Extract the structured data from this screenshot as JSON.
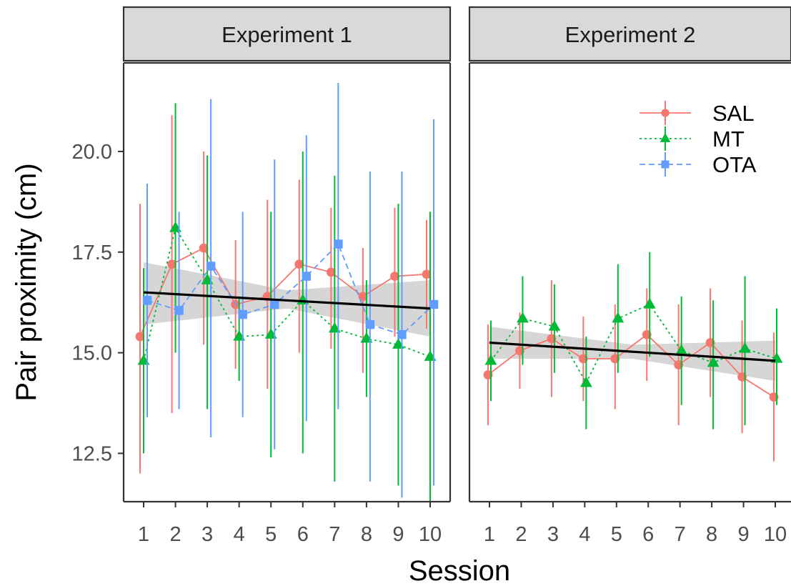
{
  "chart_data": {
    "type": "line",
    "xlabel": "Session",
    "ylabel": "Pair proximity (cm)",
    "ylim": [
      11.3,
      22.2
    ],
    "y_ticks": [
      12.5,
      15.0,
      17.5,
      20.0
    ],
    "y_tick_labels": [
      "12.5",
      "15.0",
      "17.5",
      "20.0"
    ],
    "x": [
      1,
      2,
      3,
      4,
      5,
      6,
      7,
      8,
      9,
      10
    ],
    "x_tick_labels": [
      "1",
      "2",
      "3",
      "4",
      "5",
      "6",
      "7",
      "8",
      "9",
      "10"
    ],
    "grid": false,
    "legend_position": "top-right",
    "colors": {
      "SAL": "#f8766d",
      "MT": "#00ba38",
      "OTA": "#619cff",
      "trend": "#000000",
      "ribbon": "#bdbdbd"
    },
    "panels": [
      {
        "label": "Experiment 1",
        "series": [
          {
            "name": "SAL",
            "marker": "circle",
            "line": "solid",
            "values": [
              15.4,
              17.2,
              17.6,
              16.2,
              16.4,
              17.2,
              17.0,
              16.4,
              16.9,
              16.95
            ],
            "lower": [
              12.0,
              13.5,
              15.2,
              14.6,
              14.1,
              15.0,
              15.1,
              14.5,
              15.4,
              15.6
            ],
            "upper": [
              18.7,
              20.9,
              20.0,
              17.8,
              18.8,
              19.3,
              18.6,
              17.6,
              18.6,
              18.3
            ]
          },
          {
            "name": "MT",
            "marker": "triangle",
            "line": "dotted",
            "values": [
              14.8,
              18.1,
              16.8,
              15.4,
              15.45,
              16.3,
              15.6,
              15.35,
              15.2,
              14.9
            ],
            "lower": [
              12.5,
              15.0,
              13.6,
              14.3,
              12.4,
              12.5,
              11.8,
              13.9,
              11.7,
              11.3
            ],
            "upper": [
              17.1,
              21.2,
              19.9,
              16.4,
              18.5,
              20.0,
              19.4,
              16.8,
              18.7,
              18.5
            ]
          },
          {
            "name": "OTA",
            "marker": "square",
            "line": "dashed",
            "values": [
              16.3,
              16.05,
              17.15,
              15.95,
              16.2,
              16.9,
              17.7,
              15.7,
              15.45,
              16.2
            ],
            "lower": [
              13.4,
              13.6,
              12.9,
              13.4,
              12.6,
              13.3,
              13.6,
              11.8,
              11.4,
              11.7
            ],
            "upper": [
              19.2,
              18.5,
              21.3,
              18.5,
              19.8,
              20.4,
              21.7,
              19.5,
              19.5,
              20.8
            ]
          }
        ],
        "trend": {
          "start": 16.5,
          "end": 16.1,
          "ci_start": [
            15.7,
            17.25
          ],
          "ci_mid": [
            16.1,
            16.55
          ],
          "ci_end": [
            15.4,
            16.8
          ]
        }
      },
      {
        "label": "Experiment 2",
        "series": [
          {
            "name": "SAL",
            "marker": "circle",
            "line": "solid",
            "values": [
              14.45,
              15.05,
              15.35,
              14.85,
              14.85,
              15.45,
              14.7,
              15.25,
              14.4,
              13.9
            ],
            "lower": [
              13.2,
              14.1,
              13.9,
              13.8,
              13.6,
              14.3,
              13.2,
              13.9,
              13.0,
              12.3
            ],
            "upper": [
              15.7,
              16.0,
              16.8,
              15.9,
              16.2,
              16.6,
              16.2,
              16.6,
              15.8,
              15.5
            ]
          },
          {
            "name": "MT",
            "marker": "triangle",
            "line": "dotted",
            "values": [
              14.8,
              15.85,
              15.65,
              14.25,
              15.85,
              16.2,
              15.05,
              14.75,
              15.1,
              14.85
            ],
            "lower": [
              13.8,
              14.7,
              14.5,
              13.1,
              14.5,
              14.9,
              13.7,
              13.1,
              13.2,
              13.7
            ],
            "upper": [
              15.8,
              16.9,
              16.7,
              15.4,
              17.2,
              17.5,
              16.4,
              16.3,
              16.9,
              16.1
            ]
          }
        ],
        "trend": {
          "start": 15.25,
          "end": 14.8,
          "ci_start": [
            14.85,
            15.65
          ],
          "ci_mid": [
            14.85,
            15.2
          ],
          "ci_end": [
            14.3,
            15.3
          ]
        }
      }
    ],
    "legend": [
      {
        "name": "SAL",
        "marker": "circle",
        "line": "solid"
      },
      {
        "name": "MT",
        "marker": "triangle",
        "line": "dotted"
      },
      {
        "name": "OTA",
        "marker": "square",
        "line": "dashed"
      }
    ]
  }
}
